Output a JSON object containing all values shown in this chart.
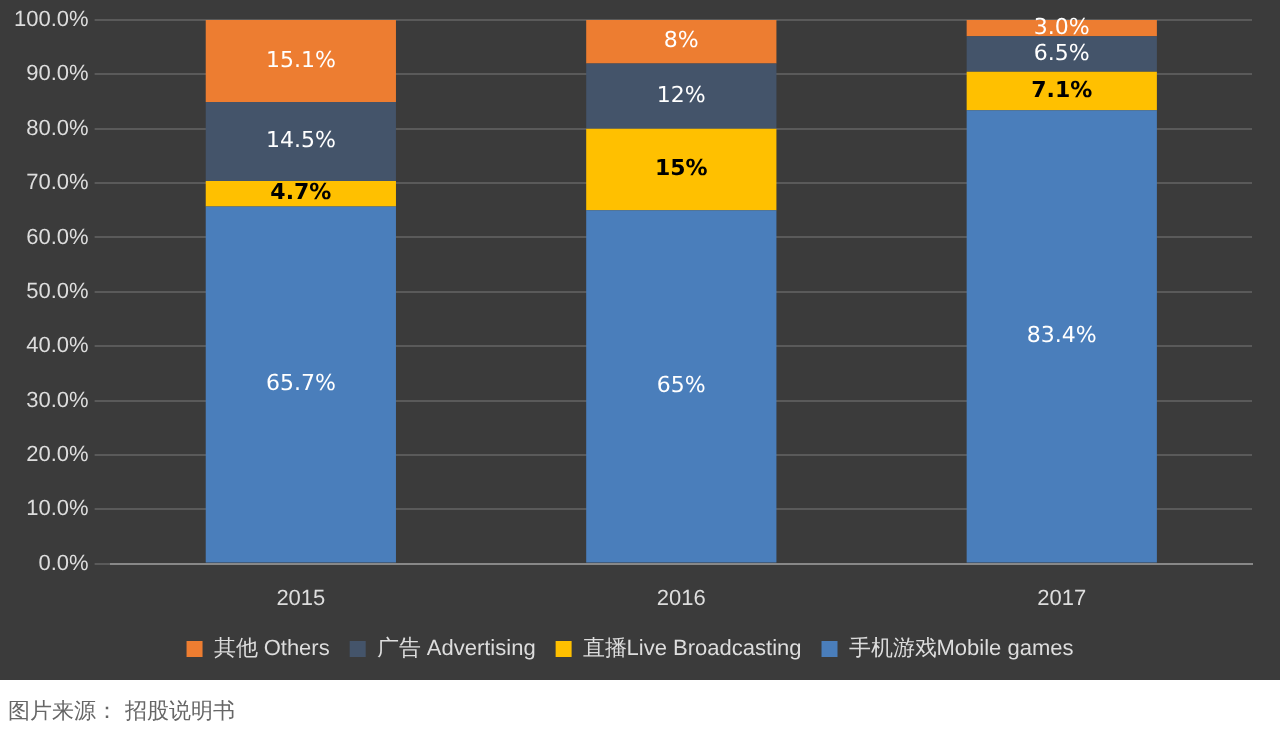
{
  "chart_data": {
    "type": "bar",
    "stacked": true,
    "categories": [
      "2015",
      "2016",
      "2017"
    ],
    "series": [
      {
        "name": "手机游戏Mobile games",
        "color": "#4a7ebb",
        "values": [
          65.7,
          65,
          83.4
        ],
        "value_labels": [
          "65.7%",
          "65%",
          "83.4%"
        ]
      },
      {
        "name": "直播Live Broadcasting",
        "color": "#ffc000",
        "values": [
          4.7,
          15,
          7.1
        ],
        "value_labels": [
          "4.7%",
          "15%",
          "7.1%"
        ]
      },
      {
        "name": "广告 Advertising",
        "color": "#44546a",
        "values": [
          14.5,
          12,
          6.5
        ],
        "value_labels": [
          "14.5%",
          "12%",
          "6.5%"
        ]
      },
      {
        "name": "其他 Others",
        "color": "#ed7d31",
        "values": [
          15.1,
          8,
          3.0
        ],
        "value_labels": [
          "15.1%",
          "8%",
          "3.0%"
        ]
      }
    ],
    "ylim": [
      0,
      100
    ],
    "yticks": [
      {
        "value": 0,
        "label": "0.0%"
      },
      {
        "value": 10,
        "label": "10.0%"
      },
      {
        "value": 20,
        "label": "20.0%"
      },
      {
        "value": 30,
        "label": "30.0%"
      },
      {
        "value": 40,
        "label": "40.0%"
      },
      {
        "value": 50,
        "label": "50.0%"
      },
      {
        "value": 60,
        "label": "60.0%"
      },
      {
        "value": 70,
        "label": "70.0%"
      },
      {
        "value": 80,
        "label": "80.0%"
      },
      {
        "value": 90,
        "label": "90.0%"
      },
      {
        "value": 100,
        "label": "100.0%"
      }
    ],
    "grid": "y",
    "legend": "bottom",
    "annotations": [
      "图片来源： 招股说明书"
    ]
  }
}
